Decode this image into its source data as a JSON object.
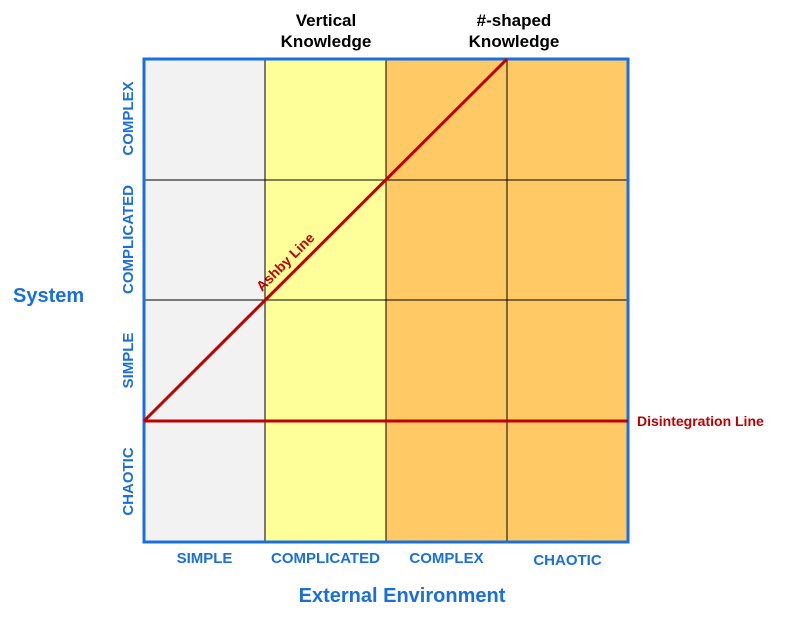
{
  "top_labels": {
    "vertical": [
      "Vertical",
      "Knowledge"
    ],
    "hash": [
      "#-shaped",
      "Knowledge"
    ]
  },
  "x_axis": {
    "title": "External Environment",
    "categories": [
      "SIMPLE",
      "COMPLICATED",
      "COMPLEX",
      "CHAOTIC"
    ]
  },
  "y_axis": {
    "title": "System",
    "categories_top_to_bottom": [
      "COMPLEX",
      "COMPLICATED",
      "SIMPLE",
      "CHAOTIC"
    ]
  },
  "lines": {
    "ashby": "Ashby Line",
    "disintegration": "Disintegration Line"
  },
  "colors": {
    "accent_blue": "#1a6fe0",
    "line_red": "#c00000",
    "col_simple": "#f2f2f2",
    "col_complicated": "#ffff99",
    "col_complex": "#ffc966",
    "grid": "#000000"
  }
}
